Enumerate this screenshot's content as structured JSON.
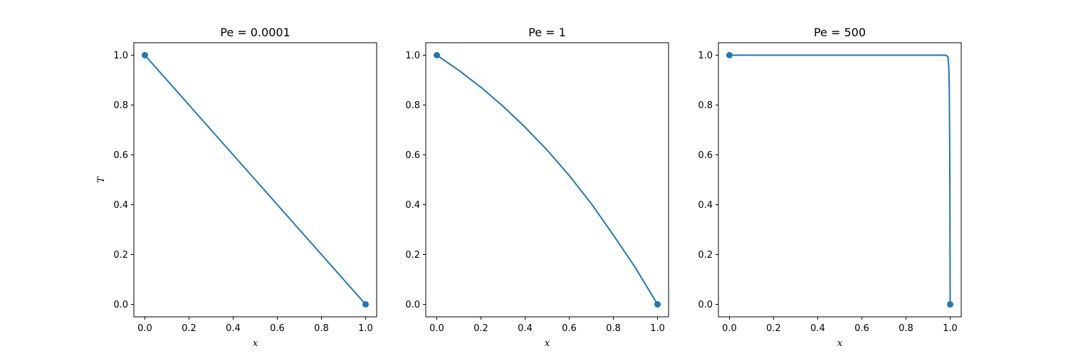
{
  "figure": {
    "line_color": "#1f77b4",
    "background": "#ffffff"
  },
  "chart_data": [
    {
      "type": "line",
      "title": "Pe = 0.0001",
      "xlabel": "x",
      "ylabel": "T",
      "xlim": [
        -0.05,
        1.05
      ],
      "ylim": [
        -0.05,
        1.05
      ],
      "xticks": [
        "0.0",
        "0.2",
        "0.4",
        "0.6",
        "0.8",
        "1.0"
      ],
      "yticks": [
        "0.0",
        "0.2",
        "0.4",
        "0.6",
        "0.8",
        "1.0"
      ],
      "grid": false,
      "series": [
        {
          "x": [
            0,
            0.1,
            0.2,
            0.3,
            0.4,
            0.5,
            0.6,
            0.7,
            0.8,
            0.9,
            1.0
          ],
          "y": [
            1.0,
            0.9,
            0.8,
            0.7,
            0.6,
            0.5,
            0.4,
            0.3,
            0.2,
            0.1,
            0.0
          ]
        }
      ],
      "markers": [
        {
          "x": 0,
          "y": 1.0
        },
        {
          "x": 1.0,
          "y": 0.0
        }
      ]
    },
    {
      "type": "line",
      "title": "Pe = 1",
      "xlabel": "x",
      "ylabel": "",
      "xlim": [
        -0.05,
        1.05
      ],
      "ylim": [
        -0.05,
        1.05
      ],
      "xticks": [
        "0.0",
        "0.2",
        "0.4",
        "0.6",
        "0.8",
        "1.0"
      ],
      "yticks": [
        "0.0",
        "0.2",
        "0.4",
        "0.6",
        "0.8",
        "1.0"
      ],
      "grid": false,
      "series": [
        {
          "x": [
            0,
            0.1,
            0.2,
            0.3,
            0.4,
            0.5,
            0.6,
            0.7,
            0.8,
            0.9,
            1.0
          ],
          "y": [
            1.0,
            0.939,
            0.871,
            0.795,
            0.711,
            0.619,
            0.517,
            0.404,
            0.278,
            0.147,
            0.0
          ]
        }
      ],
      "markers": [
        {
          "x": 0,
          "y": 1.0
        },
        {
          "x": 1.0,
          "y": 0.0
        }
      ]
    },
    {
      "type": "line",
      "title": "Pe = 500",
      "xlabel": "x",
      "ylabel": "",
      "xlim": [
        -0.05,
        1.05
      ],
      "ylim": [
        -0.05,
        1.05
      ],
      "xticks": [
        "0.0",
        "0.2",
        "0.4",
        "0.6",
        "0.8",
        "1.0"
      ],
      "yticks": [
        "0.0",
        "0.2",
        "0.4",
        "0.6",
        "0.8",
        "1.0"
      ],
      "grid": false,
      "series": [
        {
          "x": [
            0,
            0.2,
            0.4,
            0.6,
            0.8,
            0.98,
            0.99,
            0.994,
            0.996,
            0.998,
            0.999,
            1.0
          ],
          "y": [
            1.0,
            1.0,
            1.0,
            1.0,
            1.0,
            1.0,
            0.993,
            0.95,
            0.865,
            0.632,
            0.393,
            0.0
          ]
        }
      ],
      "markers": [
        {
          "x": 0,
          "y": 1.0
        },
        {
          "x": 1.0,
          "y": 0.0
        }
      ]
    }
  ]
}
